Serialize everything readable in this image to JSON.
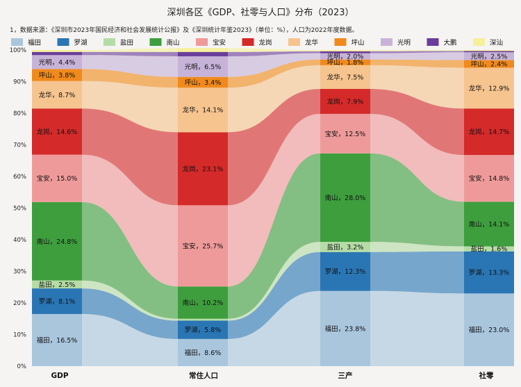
{
  "chart_data": {
    "type": "alluvial",
    "title": "深圳各区《GDP、社零与人口》分布（2023）",
    "note": "1，数据来源：《深圳市2023年国民经济和社会发展统计公报》及《深圳统计年鉴2023》（单位：%），人口为2022年度数据。",
    "categories": [
      "GDP",
      "常住人口",
      "三产",
      "社零"
    ],
    "y_ticks": [
      "0%",
      "10%",
      "20%",
      "30%",
      "40%",
      "50%",
      "60%",
      "70%",
      "80%",
      "90%",
      "100%"
    ],
    "ylim": [
      0,
      100
    ],
    "grid": false,
    "legend_position": "top",
    "series": [
      {
        "name": "福田",
        "color": "#a9c6dd",
        "values": [
          16.5,
          8.6,
          23.8,
          23.0
        ]
      },
      {
        "name": "罗湖",
        "color": "#2a76b4",
        "values": [
          8.1,
          5.8,
          12.3,
          13.3
        ]
      },
      {
        "name": "盐田",
        "color": "#b5dca6",
        "values": [
          2.5,
          0.6,
          3.2,
          1.6
        ]
      },
      {
        "name": "南山",
        "color": "#3e9e3e",
        "values": [
          24.8,
          10.2,
          28.0,
          14.1
        ]
      },
      {
        "name": "宝安",
        "color": "#ef9a9a",
        "values": [
          15.0,
          25.7,
          12.5,
          14.8
        ]
      },
      {
        "name": "龙岗",
        "color": "#d42a2a",
        "values": [
          14.6,
          23.1,
          7.9,
          14.7
        ]
      },
      {
        "name": "龙华",
        "color": "#f6c48f",
        "values": [
          8.7,
          14.1,
          7.5,
          12.9
        ]
      },
      {
        "name": "坪山",
        "color": "#f08a1c",
        "values": [
          3.8,
          3.4,
          1.8,
          2.4
        ]
      },
      {
        "name": "光明",
        "color": "#c7b3d8",
        "values": [
          4.4,
          6.5,
          2.0,
          2.5
        ]
      },
      {
        "name": "大鹏",
        "color": "#6a3d9a",
        "values": [
          1.0,
          1.4,
          0.6,
          0.4
        ]
      },
      {
        "name": "深汕",
        "color": "#f5f09a",
        "values": [
          0.6,
          1.2,
          0.4,
          0.3
        ]
      }
    ],
    "labels": [
      [
        "福田，16.5%",
        "福田，8.6%",
        "福田，23.8%",
        "福田，23.0%"
      ],
      [
        "罗湖，8.1%",
        "罗湖，5.8%",
        "罗湖，12.3%",
        "罗湖，13.3%"
      ],
      [
        "盐田，2.5%",
        "",
        "盐田，3.2%",
        "盐田，1.6%"
      ],
      [
        "南山，24.8%",
        "南山，10.2%",
        "南山，28.0%",
        "南山，14.1%"
      ],
      [
        "宝安，15.0%",
        "宝安，25.7%",
        "宝安，12.5%",
        "宝安，14.8%"
      ],
      [
        "龙岗，14.6%",
        "龙岗，23.1%",
        "龙岗，7.9%",
        "龙岗，14.7%"
      ],
      [
        "龙华，8.7%",
        "龙华，14.1%",
        "龙华，7.5%",
        "龙华，12.9%"
      ],
      [
        "坪山，3.8%",
        "坪山，3.4%",
        "坪山，1.8%",
        "坪山，2.4%"
      ],
      [
        "光明，4.4%",
        "光明，6.5%",
        "光明，2.0%",
        "光明，2.5%"
      ],
      [
        "",
        "",
        "",
        ""
      ],
      [
        "",
        "",
        "",
        ""
      ]
    ]
  }
}
